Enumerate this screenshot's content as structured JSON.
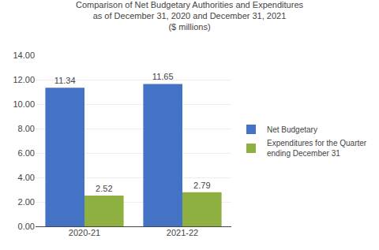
{
  "chart_data": {
    "type": "bar",
    "title": "Comparison of Net Budgetary Authorities and Expenditures\nas of December 31, 2020 and December 31, 2021\n($ millions)",
    "categories": [
      "2020-21",
      "2021-22"
    ],
    "series": [
      {
        "name": "Net Budgetary",
        "color": "#4472C4",
        "values": [
          11.34,
          11.65
        ]
      },
      {
        "name": "Expenditures for the Quarter\nending December 31",
        "color": "#8DB040",
        "values": [
          2.52,
          2.79
        ]
      }
    ],
    "ylim": [
      0,
      14.0
    ],
    "yticks": [
      {
        "value": 0.0,
        "label": "0.00"
      },
      {
        "value": 2.0,
        "label": "2.00"
      },
      {
        "value": 4.0,
        "label": "4.00"
      },
      {
        "value": 6.0,
        "label": "6.00"
      },
      {
        "value": 8.0,
        "label": "8.00"
      },
      {
        "value": 10.0,
        "label": "10.00"
      },
      {
        "value": 12.0,
        "label": "12.00"
      },
      {
        "value": 14.0,
        "label": "14.00"
      }
    ],
    "grid": true,
    "legend": "right",
    "data_labels": true
  }
}
